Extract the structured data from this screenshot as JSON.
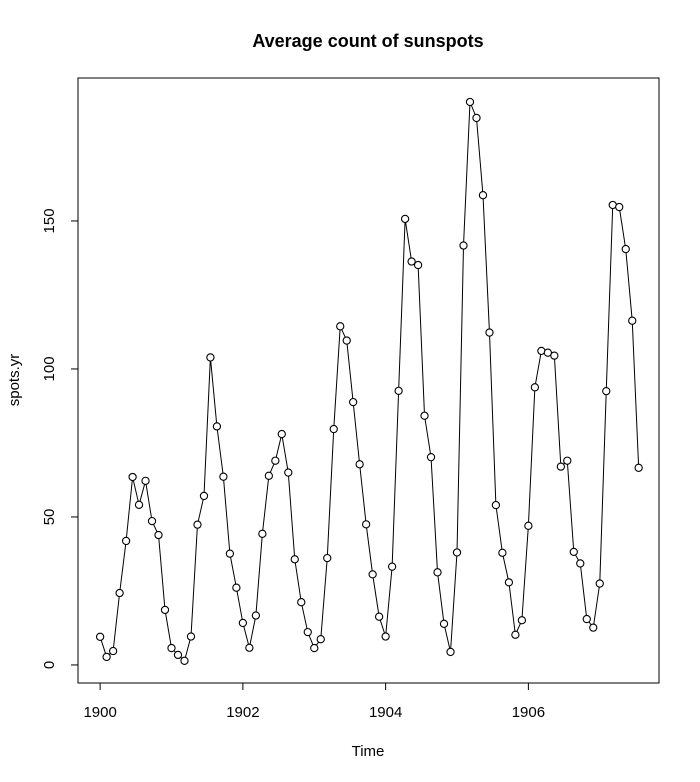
{
  "chart_data": {
    "type": "line",
    "title": "Average count of sunspots",
    "x_label": "Time",
    "y_label": "spots.yr",
    "x": [
      1900,
      1900.091,
      1900.182,
      1900.273,
      1900.364,
      1900.455,
      1900.545,
      1900.636,
      1900.727,
      1900.818,
      1900.909,
      1901,
      1901.091,
      1901.182,
      1901.273,
      1901.364,
      1901.455,
      1901.545,
      1901.636,
      1901.727,
      1901.818,
      1901.909,
      1902,
      1902.091,
      1902.182,
      1902.273,
      1902.364,
      1902.455,
      1902.545,
      1902.636,
      1902.727,
      1902.818,
      1902.909,
      1903,
      1903.091,
      1903.182,
      1903.273,
      1903.364,
      1903.455,
      1903.545,
      1903.636,
      1903.727,
      1903.818,
      1903.909,
      1904,
      1904.091,
      1904.182,
      1904.273,
      1904.364,
      1904.455,
      1904.545,
      1904.636,
      1904.727,
      1904.818,
      1904.909,
      1905,
      1905.091,
      1905.182,
      1905.273,
      1905.364,
      1905.455,
      1905.545,
      1905.636,
      1905.727,
      1905.818,
      1905.909,
      1906,
      1906.091,
      1906.182,
      1906.273,
      1906.364,
      1906.455,
      1906.545,
      1906.636,
      1906.727,
      1906.818,
      1906.909,
      1907,
      1907.091,
      1907.182,
      1907.273,
      1907.364,
      1907.455,
      1907.545
    ],
    "series": [
      {
        "color": "#000000",
        "values": [
          9.5,
          2.7,
          4.7,
          24.3,
          41.9,
          63.5,
          54.1,
          62.2,
          48.6,
          43.9,
          18.6,
          5.7,
          3.4,
          1.4,
          9.6,
          47.4,
          57.1,
          103.9,
          80.6,
          63.6,
          37.6,
          26.1,
          14.2,
          5.8,
          16.7,
          44.3,
          63.9,
          69,
          78,
          65,
          35.7,
          21.2,
          11.1,
          5.7,
          8.7,
          36.1,
          79.7,
          114.4,
          109.6,
          88.8,
          67.8,
          47.5,
          30.6,
          16.3,
          9.6,
          33.2,
          92.6,
          150.7,
          136.3,
          135.1,
          84.2,
          70.2,
          31.3,
          13.9,
          4.4,
          38,
          141.7,
          190.2,
          184.8,
          158.7,
          112.3,
          54,
          37.9,
          27.9,
          10.2,
          15.1,
          47,
          93.8,
          106.1,
          105.5,
          104.5,
          67,
          69,
          38.2,
          34.3,
          15.5,
          12.6,
          27.5,
          92.5,
          155.4,
          154.7,
          140.5,
          116.3,
          66.6
        ]
      }
    ],
    "xlim": [
      1899.69,
      1907.83
    ],
    "ylim": [
      -6.1,
      198.3
    ],
    "xticks": [
      1900,
      1902,
      1904,
      1906
    ],
    "yticks": [
      0,
      50,
      100,
      150
    ]
  }
}
